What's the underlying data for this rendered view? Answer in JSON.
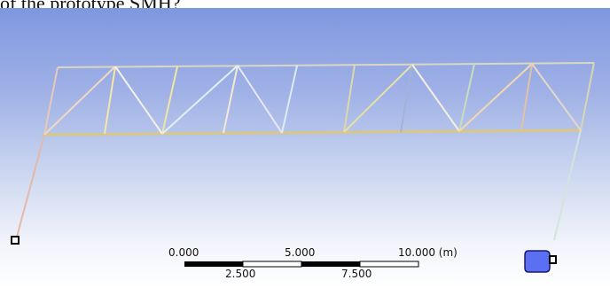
{
  "caption": "of the prototype SMH?",
  "scale_bar": {
    "top_labels": [
      "0.000",
      "5.000",
      "10.000 (m)"
    ],
    "bottom_labels": [
      "2.500",
      "7.500"
    ]
  },
  "colors": {
    "bg_top": "#7f97df",
    "bg_bottom": "#ffffff",
    "boundary_marker": "#5b6ff2"
  },
  "icons": [
    "boundary-node-icon",
    "camera-axis-icon"
  ]
}
